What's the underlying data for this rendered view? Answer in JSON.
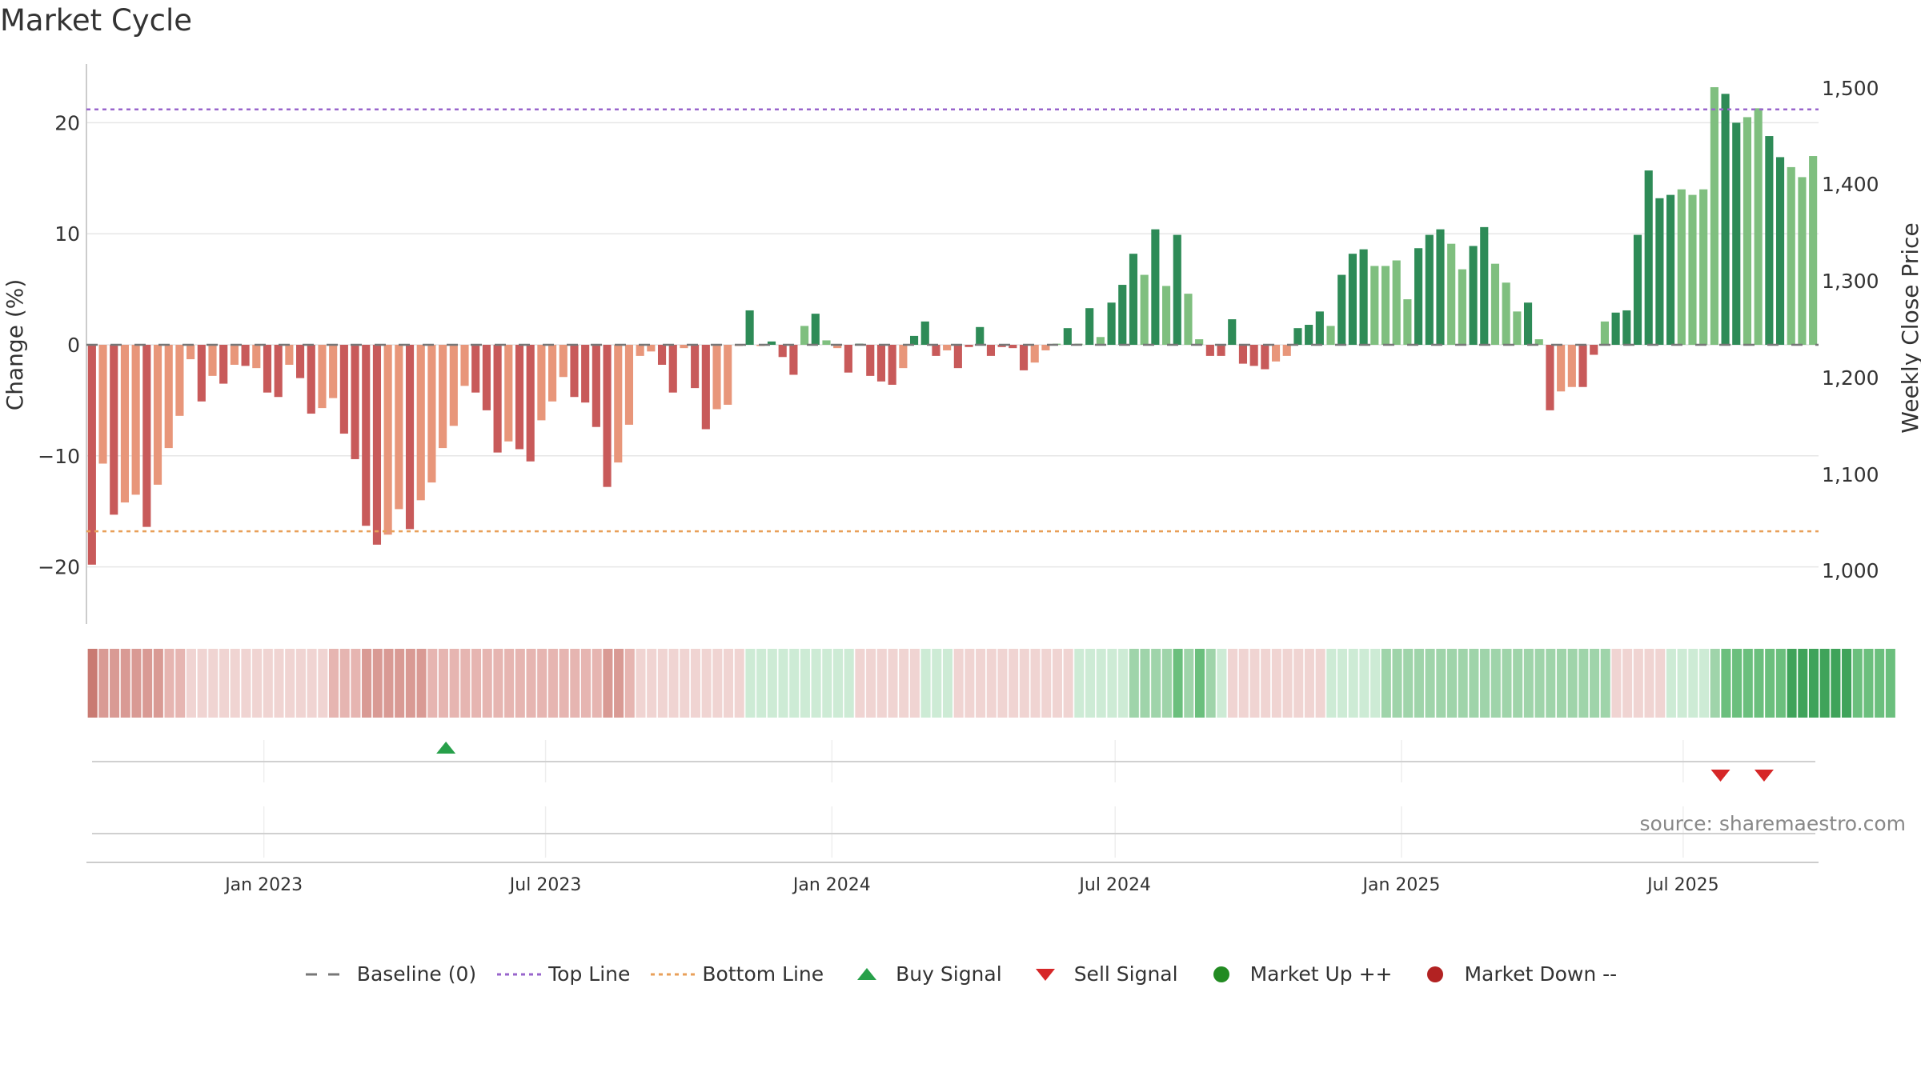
{
  "chart_data": {
    "type": "bar",
    "title": "Market Cycle",
    "ylabel_left": "Change (%)",
    "ylabel_right": "Weekly Close Price",
    "ylim_left": [
      -25,
      25
    ],
    "ylim_right": [
      950,
      1525
    ],
    "yticks_left": [
      20,
      10,
      0,
      -10,
      -20
    ],
    "yticks_left_labels": [
      "20",
      "10",
      "0",
      "−10",
      "−20"
    ],
    "yticks_right": [
      1500,
      1400,
      1300,
      1200,
      1100,
      1000
    ],
    "yticks_right_labels": [
      "1,500",
      "1,400",
      "1,300",
      "1,200",
      "1,100",
      "1,000"
    ],
    "top_line": 21.2,
    "bottom_line": -16.8,
    "x_start": "2022-09-09",
    "x_end": "2025-09-26",
    "x_ticks": [
      {
        "date": "2023-01-01",
        "label": "Jan 2023"
      },
      {
        "date": "2023-07-01",
        "label": "Jul 2023"
      },
      {
        "date": "2024-01-01",
        "label": "Jan 2024"
      },
      {
        "date": "2024-07-01",
        "label": "Jul 2024"
      },
      {
        "date": "2025-01-01",
        "label": "Jan 2025"
      },
      {
        "date": "2025-07-01",
        "label": "Jul 2025"
      }
    ],
    "values": [
      -19.8,
      -10.7,
      -15.3,
      -14.2,
      -13.5,
      -16.4,
      -12.6,
      -9.3,
      -6.4,
      -1.3,
      -5.1,
      -2.8,
      -3.5,
      -1.8,
      -1.9,
      -2.1,
      -4.3,
      -4.7,
      -1.8,
      -3.0,
      -6.2,
      -5.7,
      -4.8,
      -8.0,
      -10.3,
      -16.3,
      -18.0,
      -17.1,
      -14.8,
      -16.6,
      -14.0,
      -12.4,
      -9.3,
      -7.3,
      -3.7,
      -4.3,
      -5.9,
      -9.7,
      -8.7,
      -9.4,
      -10.5,
      -6.8,
      -5.1,
      -2.9,
      -4.7,
      -5.2,
      -7.4,
      -12.8,
      -10.6,
      -7.2,
      -1.0,
      -0.6,
      -1.8,
      -4.3,
      -0.3,
      -3.9,
      -7.6,
      -5.8,
      -5.4,
      -0.1,
      3.1,
      -0.1,
      0.3,
      -1.1,
      -2.7,
      1.7,
      2.8,
      0.4,
      -0.3,
      -2.5,
      0.1,
      -2.8,
      -3.3,
      -3.6,
      -2.1,
      0.8,
      2.1,
      -1.0,
      -0.5,
      -2.1,
      -0.2,
      1.6,
      -1.0,
      -0.2,
      -0.3,
      -2.3,
      -1.6,
      -0.5,
      0.1,
      1.5,
      0.1,
      3.3,
      0.7,
      3.8,
      5.4,
      8.2,
      6.3,
      10.4,
      5.3,
      9.9,
      4.6,
      0.5,
      -1.0,
      -1.0,
      2.3,
      -1.7,
      -1.9,
      -2.2,
      -1.5,
      -1.0,
      1.5,
      1.8,
      3.0,
      1.7,
      6.3,
      8.2,
      8.6,
      7.1,
      7.1,
      7.6,
      4.1,
      8.7,
      9.9,
      10.4,
      9.1,
      6.8,
      8.9,
      10.6,
      7.3,
      5.6,
      3.0,
      3.8,
      0.5,
      -5.9,
      -4.2,
      -3.8,
      -3.8,
      -0.9,
      2.1,
      2.9,
      3.1,
      9.9,
      15.7,
      13.2,
      13.5,
      14.0,
      13.5,
      14.0,
      23.2,
      22.6,
      20.0,
      20.5,
      21.3,
      18.8,
      16.9,
      16.0,
      15.1,
      17.0
    ],
    "tones": [
      2,
      1,
      2,
      1,
      1,
      2,
      1,
      1,
      1,
      1,
      2,
      1,
      2,
      1,
      2,
      1,
      2,
      2,
      1,
      2,
      2,
      1,
      1,
      2,
      2,
      2,
      2,
      1,
      1,
      2,
      1,
      1,
      1,
      1,
      1,
      2,
      2,
      2,
      1,
      2,
      2,
      1,
      1,
      1,
      2,
      2,
      2,
      2,
      1,
      1,
      1,
      1,
      2,
      2,
      1,
      2,
      2,
      1,
      1,
      1,
      2,
      1,
      2,
      2,
      2,
      1,
      2,
      1,
      1,
      2,
      2,
      2,
      2,
      2,
      1,
      2,
      2,
      2,
      1,
      2,
      2,
      2,
      2,
      2,
      2,
      2,
      1,
      1,
      1,
      2,
      1,
      2,
      1,
      2,
      2,
      2,
      1,
      2,
      1,
      2,
      1,
      1,
      2,
      2,
      2,
      2,
      2,
      2,
      1,
      1,
      2,
      2,
      2,
      1,
      2,
      2,
      2,
      1,
      1,
      1,
      1,
      2,
      2,
      2,
      1,
      1,
      2,
      2,
      1,
      1,
      1,
      2,
      1,
      2,
      1,
      1,
      2,
      2,
      1,
      2,
      2,
      2,
      2,
      2,
      2,
      1,
      1,
      1,
      1,
      2,
      2,
      1,
      1,
      2,
      2,
      1,
      1,
      1,
      1
    ],
    "regime": [
      4,
      3,
      3,
      3,
      3,
      3,
      3,
      2,
      2,
      1,
      1,
      1,
      1,
      1,
      1,
      1,
      1,
      1,
      1,
      1,
      1,
      1,
      2,
      2,
      2,
      3,
      3,
      3,
      3,
      3,
      3,
      2,
      2,
      2,
      2,
      2,
      2,
      2,
      2,
      2,
      2,
      2,
      2,
      2,
      2,
      2,
      2,
      3,
      3,
      2,
      1,
      1,
      1,
      1,
      1,
      1,
      1,
      1,
      1,
      1,
      -1,
      -1,
      -1,
      -1,
      -1,
      -1,
      -1,
      -1,
      -1,
      -1,
      1,
      1,
      1,
      1,
      1,
      1,
      -1,
      -1,
      -1,
      1,
      1,
      1,
      1,
      1,
      1,
      1,
      1,
      1,
      1,
      1,
      -1,
      -1,
      -1,
      -1,
      -1,
      -2,
      -2,
      -2,
      -2,
      -3,
      -2,
      -3,
      -2,
      -1,
      1,
      1,
      1,
      1,
      1,
      1,
      1,
      1,
      1,
      -1,
      -1,
      -1,
      -1,
      -1,
      -2,
      -2,
      -2,
      -2,
      -2,
      -2,
      -2,
      -2,
      -2,
      -2,
      -2,
      -2,
      -2,
      -2,
      -2,
      -2,
      -2,
      -2,
      -2,
      -2,
      -2,
      1,
      1,
      1,
      1,
      1,
      -1,
      -1,
      -1,
      -1,
      -2,
      -3,
      -3,
      -3,
      -3,
      -3,
      -3,
      -4,
      -4,
      -4,
      -4,
      -4,
      -4,
      -3,
      -3,
      -3,
      -3
    ],
    "buy_signals": [
      "2023-04-28"
    ],
    "sell_signals": [
      "2025-07-25",
      "2025-08-22"
    ],
    "legend": [
      {
        "label": "Baseline (0)",
        "symbol": "dash"
      },
      {
        "label": "Top Line",
        "symbol": "dot-purple"
      },
      {
        "label": "Bottom Line",
        "symbol": "dot-orange"
      },
      {
        "label": "Buy Signal",
        "symbol": "triangle-up"
      },
      {
        "label": "Sell Signal",
        "symbol": "triangle-down"
      },
      {
        "label": "Market Up ++",
        "symbol": "circle-green"
      },
      {
        "label": "Market Down --",
        "symbol": "circle-red"
      }
    ],
    "legend_position": "bottom",
    "grid": true
  },
  "source": "source: sharemaestro.com",
  "colors": {
    "neg_strong": "#c85a5a",
    "neg_light": "#e8967a",
    "pos_strong": "#2e8b57",
    "pos_light": "#7fbf7f",
    "top_line": "#9966cc",
    "bottom_line": "#e8a05a",
    "buy": "#27a04a",
    "sell": "#d62728",
    "market_up": "#228b22",
    "market_down": "#b22222",
    "baseline": "#777777"
  }
}
